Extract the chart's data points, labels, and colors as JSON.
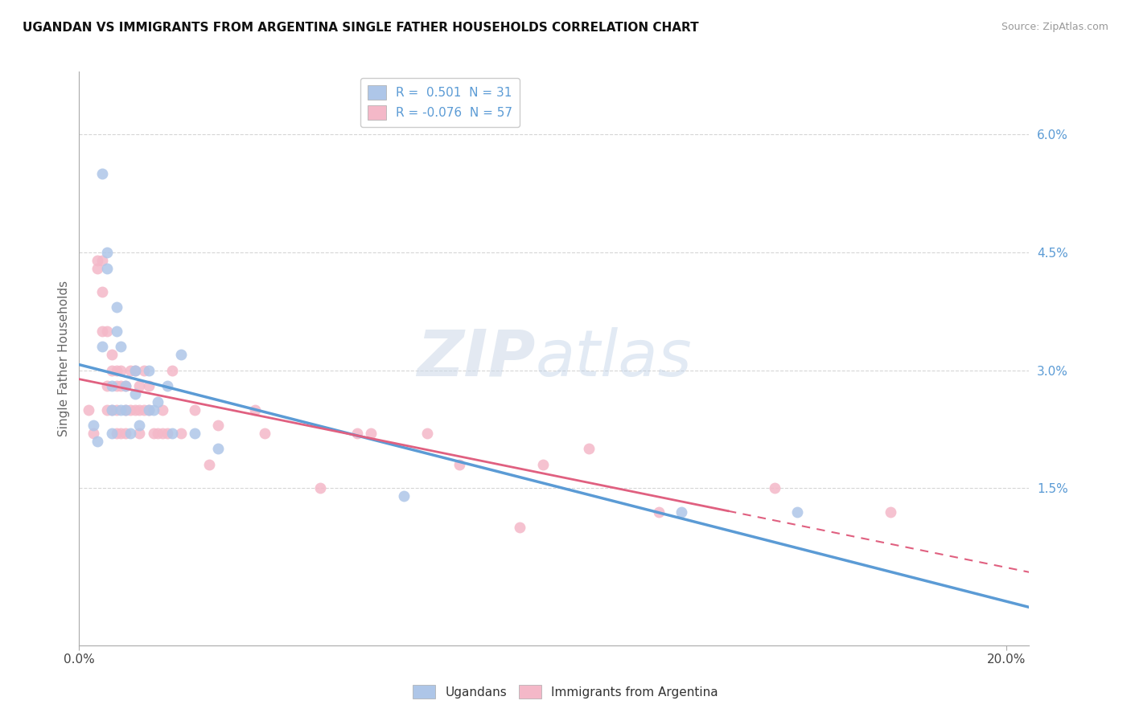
{
  "title": "UGANDAN VS IMMIGRANTS FROM ARGENTINA SINGLE FATHER HOUSEHOLDS CORRELATION CHART",
  "source": "Source: ZipAtlas.com",
  "ylabel": "Single Father Households",
  "xlim": [
    0.0,
    0.205
  ],
  "ylim": [
    -0.005,
    0.068
  ],
  "y_ticks": [
    0.015,
    0.03,
    0.045,
    0.06
  ],
  "y_tick_labels": [
    "1.5%",
    "3.0%",
    "4.5%",
    "6.0%"
  ],
  "x_ticks": [
    0.0,
    0.2
  ],
  "x_tick_labels": [
    "0.0%",
    "20.0%"
  ],
  "legend_entries": [
    {
      "label": "R =  0.501  N = 31",
      "color": "#aec6e8"
    },
    {
      "label": "R = -0.076  N = 57",
      "color": "#f4b8c8"
    }
  ],
  "legend_labels_bottom": [
    "Ugandans",
    "Immigrants from Argentina"
  ],
  "ugandan_color": "#aec6e8",
  "argentina_color": "#f4b8c8",
  "ugandan_line_color": "#5b9bd5",
  "argentina_line_color": "#e06080",
  "watermark_zip": "ZIP",
  "watermark_atlas": "atlas",
  "background_color": "#ffffff",
  "grid_color": "#cccccc",
  "ugandan_x": [
    0.003,
    0.004,
    0.005,
    0.005,
    0.006,
    0.006,
    0.007,
    0.007,
    0.007,
    0.008,
    0.008,
    0.009,
    0.009,
    0.01,
    0.01,
    0.011,
    0.012,
    0.012,
    0.013,
    0.015,
    0.015,
    0.016,
    0.017,
    0.019,
    0.02,
    0.022,
    0.025,
    0.03,
    0.07,
    0.13,
    0.155
  ],
  "ugandan_y": [
    0.023,
    0.021,
    0.055,
    0.033,
    0.045,
    0.043,
    0.028,
    0.025,
    0.022,
    0.038,
    0.035,
    0.025,
    0.033,
    0.025,
    0.028,
    0.022,
    0.03,
    0.027,
    0.023,
    0.03,
    0.025,
    0.025,
    0.026,
    0.028,
    0.022,
    0.032,
    0.022,
    0.02,
    0.014,
    0.012,
    0.012
  ],
  "argentina_x": [
    0.002,
    0.003,
    0.004,
    0.004,
    0.005,
    0.005,
    0.005,
    0.006,
    0.006,
    0.006,
    0.007,
    0.007,
    0.007,
    0.008,
    0.008,
    0.008,
    0.008,
    0.009,
    0.009,
    0.009,
    0.01,
    0.01,
    0.01,
    0.011,
    0.011,
    0.012,
    0.012,
    0.013,
    0.013,
    0.013,
    0.014,
    0.014,
    0.015,
    0.015,
    0.016,
    0.017,
    0.018,
    0.018,
    0.019,
    0.02,
    0.022,
    0.025,
    0.028,
    0.03,
    0.038,
    0.04,
    0.052,
    0.06,
    0.063,
    0.075,
    0.082,
    0.095,
    0.1,
    0.11,
    0.125,
    0.15,
    0.175
  ],
  "argentina_y": [
    0.025,
    0.022,
    0.044,
    0.043,
    0.044,
    0.04,
    0.035,
    0.035,
    0.028,
    0.025,
    0.032,
    0.03,
    0.025,
    0.03,
    0.028,
    0.025,
    0.022,
    0.03,
    0.028,
    0.022,
    0.028,
    0.025,
    0.022,
    0.03,
    0.025,
    0.03,
    0.025,
    0.028,
    0.025,
    0.022,
    0.03,
    0.025,
    0.028,
    0.025,
    0.022,
    0.022,
    0.025,
    0.022,
    0.022,
    0.03,
    0.022,
    0.025,
    0.018,
    0.023,
    0.025,
    0.022,
    0.015,
    0.022,
    0.022,
    0.022,
    0.018,
    0.01,
    0.018,
    0.02,
    0.012,
    0.015,
    0.012
  ]
}
